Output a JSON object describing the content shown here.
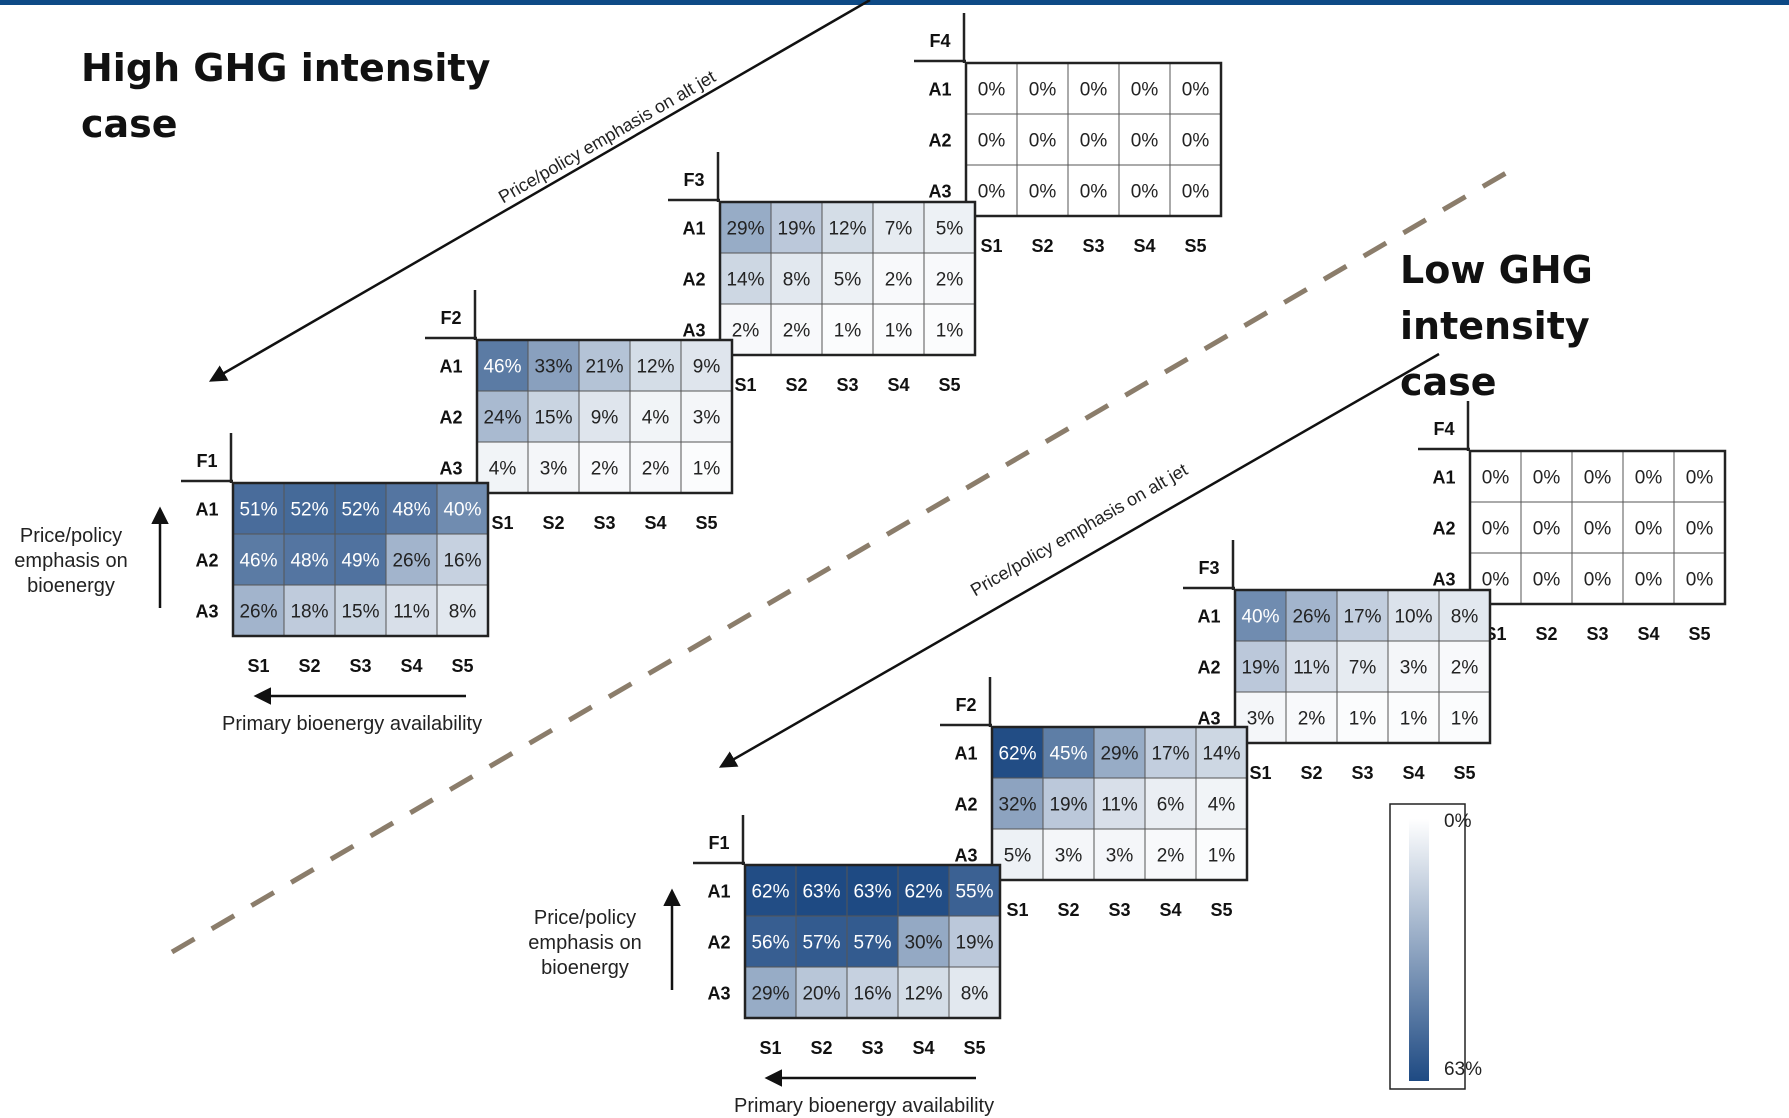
{
  "top_bar_color": "#0e4a86",
  "divider_color": "#8b7d6b",
  "colors": {
    "min": "#ffffff",
    "max": "#1e4a83"
  },
  "legend": {
    "min_label": "0%",
    "max_label": "63%",
    "min": 0,
    "max": 63
  },
  "row_labels": [
    "A1",
    "A2",
    "A3"
  ],
  "col_labels": [
    "S1",
    "S2",
    "S3",
    "S4",
    "S5"
  ],
  "high_case": {
    "title": "High GHG intensity\ncase",
    "diagonal_label": "Price/policy emphasis on alt jet",
    "y_label": "Price/policy\nemphasis on\nbioenergy",
    "x_label": "Primary bioenergy availability"
  },
  "low_case": {
    "title": "Low GHG intensity\ncase",
    "diagonal_label": "Price/policy emphasis on alt jet",
    "y_label": "Price/policy\nemphasis on\nbioenergy",
    "x_label": "Primary bioenergy availability"
  },
  "chart_data": [
    {
      "type": "heatmap",
      "case": "High GHG intensity case",
      "unit": "%",
      "panels": [
        {
          "label": "F1",
          "values": [
            [
              51,
              52,
              52,
              48,
              40
            ],
            [
              46,
              48,
              49,
              26,
              16
            ],
            [
              26,
              18,
              15,
              11,
              8
            ]
          ]
        },
        {
          "label": "F2",
          "values": [
            [
              46,
              33,
              21,
              12,
              9
            ],
            [
              24,
              15,
              9,
              4,
              3
            ],
            [
              4,
              3,
              2,
              2,
              1
            ]
          ]
        },
        {
          "label": "F3",
          "values": [
            [
              29,
              19,
              12,
              7,
              5
            ],
            [
              14,
              8,
              5,
              2,
              2
            ],
            [
              2,
              2,
              1,
              1,
              1
            ]
          ]
        },
        {
          "label": "F4",
          "values": [
            [
              0,
              0,
              0,
              0,
              0
            ],
            [
              0,
              0,
              0,
              0,
              0
            ],
            [
              0,
              0,
              0,
              0,
              0
            ]
          ]
        }
      ]
    },
    {
      "type": "heatmap",
      "case": "Low GHG intensity case",
      "unit": "%",
      "panels": [
        {
          "label": "F1",
          "values": [
            [
              62,
              63,
              63,
              62,
              55
            ],
            [
              56,
              57,
              57,
              30,
              19
            ],
            [
              29,
              20,
              16,
              12,
              8
            ]
          ]
        },
        {
          "label": "F2",
          "values": [
            [
              62,
              45,
              29,
              17,
              14
            ],
            [
              32,
              19,
              11,
              6,
              4
            ],
            [
              5,
              3,
              3,
              2,
              1
            ]
          ]
        },
        {
          "label": "F3",
          "values": [
            [
              40,
              26,
              17,
              10,
              8
            ],
            [
              19,
              11,
              7,
              3,
              2
            ],
            [
              3,
              2,
              1,
              1,
              1
            ]
          ]
        },
        {
          "label": "F4",
          "values": [
            [
              0,
              0,
              0,
              0,
              0
            ],
            [
              0,
              0,
              0,
              0,
              0
            ],
            [
              0,
              0,
              0,
              0,
              0
            ]
          ]
        }
      ]
    }
  ]
}
